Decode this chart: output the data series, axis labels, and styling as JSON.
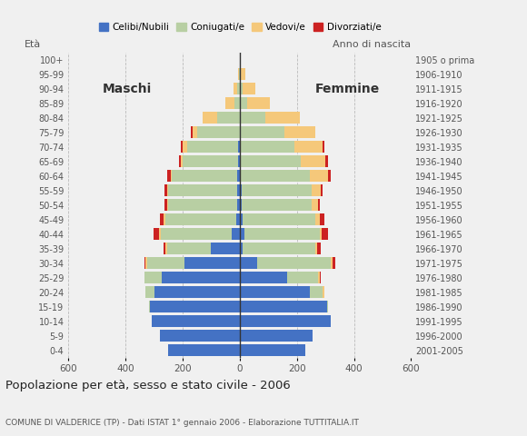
{
  "age_groups": [
    "0-4",
    "5-9",
    "10-14",
    "15-19",
    "20-24",
    "25-29",
    "30-34",
    "35-39",
    "40-44",
    "45-49",
    "50-54",
    "55-59",
    "60-64",
    "65-69",
    "70-74",
    "75-79",
    "80-84",
    "85-89",
    "90-94",
    "95-99",
    "100+"
  ],
  "birth_years": [
    "2001-2005",
    "1996-2000",
    "1991-1995",
    "1986-1990",
    "1981-1985",
    "1976-1980",
    "1971-1975",
    "1966-1970",
    "1961-1965",
    "1956-1960",
    "1951-1955",
    "1946-1950",
    "1941-1945",
    "1936-1940",
    "1931-1935",
    "1926-1930",
    "1921-1925",
    "1916-1920",
    "1911-1915",
    "1906-1910",
    "1905 o prima"
  ],
  "male": {
    "celibi": [
      250,
      280,
      310,
      315,
      300,
      275,
      195,
      100,
      28,
      12,
      10,
      10,
      8,
      5,
      5,
      0,
      0,
      0,
      0,
      0,
      0
    ],
    "coniugati": [
      0,
      0,
      0,
      2,
      30,
      58,
      130,
      155,
      250,
      250,
      240,
      240,
      230,
      195,
      180,
      150,
      80,
      20,
      8,
      2,
      0
    ],
    "vedovi": [
      0,
      0,
      0,
      0,
      0,
      2,
      5,
      5,
      5,
      5,
      5,
      5,
      5,
      5,
      15,
      15,
      50,
      30,
      15,
      3,
      0
    ],
    "divorziati": [
      0,
      0,
      0,
      0,
      0,
      0,
      5,
      8,
      20,
      12,
      10,
      10,
      10,
      8,
      5,
      5,
      0,
      0,
      0,
      0,
      0
    ]
  },
  "female": {
    "nubili": [
      230,
      255,
      320,
      305,
      245,
      165,
      60,
      10,
      15,
      10,
      8,
      8,
      5,
      5,
      5,
      0,
      0,
      0,
      0,
      0,
      0
    ],
    "coniugate": [
      0,
      0,
      0,
      5,
      45,
      110,
      260,
      255,
      265,
      255,
      245,
      245,
      240,
      210,
      185,
      155,
      90,
      25,
      10,
      5,
      0
    ],
    "vedove": [
      0,
      0,
      0,
      0,
      5,
      5,
      5,
      5,
      8,
      15,
      20,
      30,
      65,
      85,
      100,
      110,
      120,
      80,
      45,
      15,
      0
    ],
    "divorziate": [
      0,
      0,
      0,
      0,
      0,
      5,
      10,
      15,
      20,
      15,
      8,
      8,
      10,
      8,
      5,
      0,
      0,
      0,
      0,
      0,
      0
    ]
  },
  "colors": {
    "celibi_nubili": "#4472c4",
    "coniugati": "#b8cfa3",
    "vedovi": "#f5c87a",
    "divorziati": "#cc2222"
  },
  "xlim": 600,
  "title": "Popolazione per età, sesso e stato civile - 2006",
  "subtitle": "COMUNE DI VALDERICE (TP) - Dati ISTAT 1° gennaio 2006 - Elaborazione TUTTITALIA.IT",
  "ylabel_left": "Età",
  "ylabel_right": "Anno di nascita",
  "label_maschi": "Maschi",
  "label_femmine": "Femmine",
  "legend_labels": [
    "Celibi/Nubili",
    "Coniugati/e",
    "Vedovi/e",
    "Divorziati/e"
  ],
  "background_color": "#f0f0f0"
}
